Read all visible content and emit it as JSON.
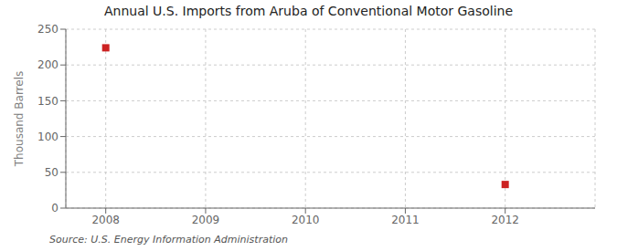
{
  "chart_data": {
    "type": "scatter",
    "title": "Annual U.S. Imports from Aruba of Conventional Motor Gasoline",
    "ylabel": "Thousand Barrels",
    "source": "Source: U.S. Energy Information Administration",
    "x": [
      2008,
      2012
    ],
    "values": [
      224,
      33
    ],
    "color": "#cc2222",
    "marker": "square",
    "xlim": [
      2007.6,
      2012.9
    ],
    "xticks": [
      2008,
      2009,
      2010,
      2011,
      2012
    ],
    "ylim": [
      0,
      250
    ],
    "yticks": [
      0,
      50,
      100,
      150,
      200,
      250
    ],
    "grid": true
  }
}
